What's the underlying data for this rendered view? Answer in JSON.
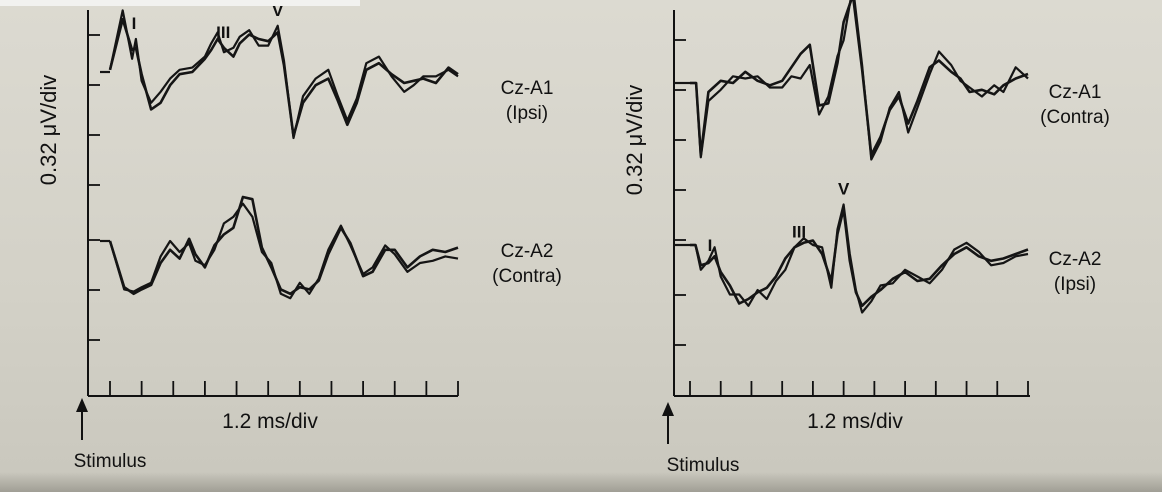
{
  "chart_data": [
    {
      "type": "line",
      "xlabel": "1.2 ms/div",
      "ylabel": "0.32 μV/div",
      "stimulus_label": "Stimulus",
      "x_divisions": 11,
      "y_divisions": 7,
      "traces": [
        {
          "label_line1": "Cz-A1",
          "label_line2": "(Ipsi)",
          "peaks": [
            {
              "label": "I",
              "x": 0.76
            },
            {
              "label": "III",
              "x": 3.58
            },
            {
              "label": "V",
              "x": 5.3
            }
          ],
          "series": [
            {
              "x": [
                0,
                0.4,
                0.7,
                0.82,
                1.0,
                1.3,
                1.6,
                1.9,
                2.2,
                2.6,
                3.0,
                3.2,
                3.4,
                3.6,
                3.9,
                4.1,
                4.4,
                4.7,
                5.0,
                5.3,
                5.5,
                5.8,
                6.1,
                6.5,
                6.9,
                7.2,
                7.5,
                7.8,
                8.1,
                8.5,
                8.9,
                9.3,
                9.6,
                9.9,
                10.3,
                10.7,
                11.0
              ],
              "y": [
                0.05,
                1.4,
                0.3,
                0.75,
                -0.2,
                -0.7,
                -0.45,
                -0.15,
                0.05,
                0.1,
                0.35,
                0.65,
                0.9,
                0.45,
                0.55,
                0.8,
                0.95,
                0.6,
                0.6,
                1.05,
                0.25,
                -1.5,
                -0.55,
                -0.15,
                0.05,
                -0.55,
                -1.1,
                -0.6,
                0.2,
                0.35,
                -0.1,
                -0.45,
                -0.3,
                -0.1,
                -0.1,
                0.05,
                -0.1
              ]
            },
            {
              "x": [
                0,
                0.4,
                0.7,
                0.82,
                1.0,
                1.3,
                1.6,
                1.9,
                2.2,
                2.6,
                3.0,
                3.2,
                3.4,
                3.6,
                3.9,
                4.1,
                4.4,
                4.7,
                5.0,
                5.3,
                5.5,
                5.8,
                6.1,
                6.5,
                6.9,
                7.2,
                7.5,
                7.8,
                8.1,
                8.5,
                8.9,
                9.3,
                9.6,
                9.9,
                10.3,
                10.7,
                11.0
              ],
              "y": [
                0.05,
                1.2,
                0.5,
                0.55,
                -0.05,
                -0.85,
                -0.7,
                -0.3,
                -0.05,
                0.0,
                0.3,
                0.5,
                0.75,
                0.55,
                0.35,
                0.65,
                0.85,
                0.75,
                0.7,
                0.9,
                0.15,
                -1.45,
                -0.7,
                -0.3,
                -0.15,
                -0.65,
                -1.2,
                -0.7,
                0.05,
                0.2,
                -0.05,
                -0.25,
                -0.2,
                -0.15,
                -0.25,
                0.1,
                -0.05
              ]
            }
          ]
        },
        {
          "label_line1": "Cz-A2",
          "label_line2": "(Contra)",
          "peaks": [],
          "series": [
            {
              "x": [
                0,
                0.45,
                0.75,
                1.0,
                1.3,
                1.6,
                1.9,
                2.2,
                2.5,
                2.7,
                3.0,
                3.3,
                3.6,
                3.9,
                4.2,
                4.5,
                4.8,
                5.1,
                5.4,
                5.7,
                6.0,
                6.3,
                6.6,
                6.9,
                7.3,
                7.6,
                8.0,
                8.3,
                8.7,
                9.0,
                9.4,
                9.8,
                10.2,
                10.6,
                11.0
              ],
              "y": [
                0,
                -1.1,
                -1.15,
                -1.05,
                -0.95,
                -0.35,
                0.0,
                -0.25,
                -0.05,
                -0.45,
                -0.55,
                -0.2,
                0.4,
                0.55,
                0.85,
                0.55,
                -0.25,
                -0.5,
                -1.2,
                -1.3,
                -0.95,
                -1.2,
                -0.85,
                -0.2,
                0.35,
                -0.1,
                -0.75,
                -0.6,
                -0.1,
                -0.3,
                -0.7,
                -0.5,
                -0.45,
                -0.35,
                -0.4
              ]
            },
            {
              "x": [
                0,
                0.45,
                0.75,
                1.0,
                1.3,
                1.6,
                1.9,
                2.2,
                2.5,
                2.7,
                3.0,
                3.3,
                3.6,
                3.9,
                4.2,
                4.5,
                4.8,
                5.1,
                5.4,
                5.7,
                6.0,
                6.3,
                6.6,
                6.9,
                7.3,
                7.6,
                8.0,
                8.3,
                8.7,
                9.0,
                9.4,
                9.8,
                10.2,
                10.6,
                11.0
              ],
              "y": [
                0,
                -1.05,
                -1.2,
                -1.1,
                -1.0,
                -0.5,
                -0.2,
                -0.4,
                0.05,
                -0.3,
                -0.6,
                -0.1,
                0.15,
                0.3,
                1.0,
                0.95,
                -0.15,
                -0.6,
                -1.1,
                -1.2,
                -1.05,
                -1.1,
                -0.9,
                -0.3,
                0.3,
                -0.05,
                -0.8,
                -0.7,
                -0.2,
                -0.2,
                -0.6,
                -0.35,
                -0.2,
                -0.25,
                -0.15
              ]
            }
          ]
        }
      ]
    },
    {
      "type": "line",
      "xlabel": "1.2 ms/div",
      "ylabel": "0.32 μV/div",
      "stimulus_label": "Stimulus",
      "x_divisions": 11,
      "y_divisions": 7,
      "traces": [
        {
          "label_line1": "Cz-A1",
          "label_line2": "(Contra)",
          "peaks": [],
          "series": [
            {
              "x": [
                0,
                0.2,
                0.35,
                0.6,
                1.0,
                1.4,
                1.8,
                2.2,
                2.6,
                3.0,
                3.3,
                3.6,
                3.9,
                4.2,
                4.5,
                4.8,
                5.0,
                5.3,
                5.6,
                5.9,
                6.2,
                6.5,
                6.8,
                7.1,
                7.4,
                7.8,
                8.1,
                8.5,
                8.8,
                9.1,
                9.5,
                9.9,
                10.2,
                10.6,
                11.0
              ],
              "y": [
                0,
                0,
                -1.65,
                -0.4,
                -0.15,
                0.15,
                0.1,
                0.15,
                -0.1,
                -0.1,
                0.15,
                0.1,
                0.4,
                -0.7,
                -0.3,
                0.6,
                0.95,
                2.15,
                0.4,
                -1.7,
                -1.3,
                -0.55,
                -0.2,
                -1.1,
                -0.55,
                0.2,
                0.7,
                0.4,
                0.05,
                -0.1,
                -0.3,
                -0.05,
                -0.2,
                0.35,
                0.1
              ]
            },
            {
              "x": [
                0,
                0.2,
                0.35,
                0.6,
                1.0,
                1.4,
                1.8,
                2.2,
                2.6,
                3.0,
                3.3,
                3.6,
                3.9,
                4.2,
                4.5,
                4.8,
                5.0,
                5.3,
                5.6,
                5.9,
                6.2,
                6.5,
                6.8,
                7.1,
                7.4,
                7.8,
                8.1,
                8.5,
                8.8,
                9.1,
                9.5,
                9.9,
                10.2,
                10.6,
                11.0
              ],
              "y": [
                0,
                0,
                -1.6,
                -0.2,
                0.05,
                0.0,
                0.25,
                0.05,
                -0.05,
                0.05,
                0.35,
                0.65,
                0.85,
                -0.5,
                -0.45,
                0.45,
                1.35,
                1.95,
                0.3,
                -1.6,
                -1.2,
                -0.6,
                -0.3,
                -0.9,
                -0.4,
                0.35,
                0.5,
                0.25,
                0.1,
                -0.2,
                -0.15,
                -0.25,
                -0.05,
                0.1,
                0.2
              ]
            }
          ]
        },
        {
          "label_line1": "Cz-A2",
          "label_line2": "(Ipsi)",
          "peaks": [
            {
              "label": "I",
              "x": 0.65
            },
            {
              "label": "III",
              "x": 3.55
            },
            {
              "label": "V",
              "x": 5.0
            }
          ],
          "series": [
            {
              "x": [
                0,
                0.18,
                0.35,
                0.6,
                0.8,
                1.0,
                1.3,
                1.6,
                1.9,
                2.2,
                2.5,
                2.8,
                3.1,
                3.4,
                3.7,
                4.0,
                4.3,
                4.6,
                4.8,
                5.0,
                5.2,
                5.4,
                5.6,
                5.9,
                6.2,
                6.6,
                7.0,
                7.4,
                7.8,
                8.2,
                8.6,
                9.0,
                9.4,
                9.8,
                10.2,
                10.6,
                11.0
              ],
              "y": [
                0,
                0,
                -0.55,
                -0.35,
                -0.05,
                -0.7,
                -1.1,
                -1.1,
                -1.35,
                -1.0,
                -1.2,
                -0.8,
                -0.55,
                -0.05,
                0.15,
                0.0,
                -0.05,
                -0.95,
                0.35,
                0.9,
                -0.2,
                -1.0,
                -1.5,
                -1.25,
                -0.9,
                -0.85,
                -0.55,
                -0.7,
                -0.85,
                -0.55,
                -0.1,
                0.05,
                -0.15,
                -0.45,
                -0.4,
                -0.25,
                -0.2
              ]
            },
            {
              "x": [
                0,
                0.18,
                0.35,
                0.6,
                0.8,
                1.0,
                1.3,
                1.6,
                1.9,
                2.2,
                2.5,
                2.8,
                3.1,
                3.4,
                3.7,
                4.0,
                4.3,
                4.6,
                4.8,
                5.0,
                5.2,
                5.4,
                5.6,
                5.9,
                6.2,
                6.6,
                7.0,
                7.4,
                7.8,
                8.2,
                8.6,
                9.0,
                9.4,
                9.8,
                10.2,
                10.6,
                11.0
              ],
              "y": [
                0,
                0,
                -0.45,
                -0.4,
                -0.25,
                -0.6,
                -0.9,
                -1.3,
                -1.2,
                -1.05,
                -0.95,
                -0.7,
                -0.3,
                -0.05,
                0.05,
                0.1,
                -0.2,
                -0.8,
                0.25,
                0.8,
                -0.35,
                -1.05,
                -1.35,
                -1.15,
                -1.0,
                -0.75,
                -0.6,
                -0.8,
                -0.75,
                -0.45,
                -0.2,
                -0.05,
                -0.25,
                -0.35,
                -0.3,
                -0.2,
                -0.1
              ]
            }
          ]
        }
      ]
    }
  ]
}
